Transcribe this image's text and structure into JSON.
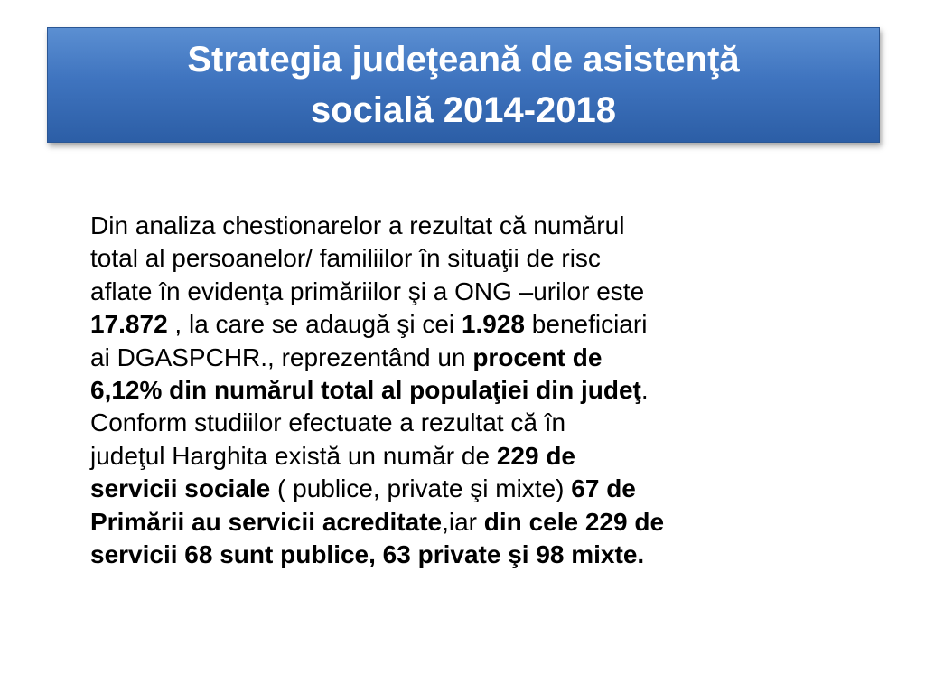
{
  "slide": {
    "title_line1": "Strategia judeţeană de asistenţă",
    "title_line2": "socială 2014-2018"
  },
  "body": {
    "l1": "Din analiza chestionarelor a rezultat  că numărul",
    "l2": "total al persoanelor/ familiilor în situaţii de risc",
    "l3": "aflate în evidenţa primăriilor şi a ONG –urilor este",
    "l4_bold1": "17.872",
    "l4_text1": " , la care se adaugă şi cei ",
    "l4_bold2": "1.928",
    "l4_text2": " beneficiari",
    "l5_text": "ai DGASPCHR., reprezentând un ",
    "l5_bold": "procent de",
    "l6_bold": "6,12% din numărul total al populaţiei din judeţ",
    "l6_text": ".",
    "l7": "Conform studiilor efectuate a rezultat că în",
    "l8_text": "judeţul Harghita există un număr de ",
    "l8_bold": "229 de",
    "l9_bold1": "servicii sociale",
    "l9_text": " ( publice, private şi mixte) ",
    "l9_bold2": "67 de",
    "l10_bold1": "Primării au servicii acreditate",
    "l10_text": ",iar ",
    "l10_bold2": "din cele 229 de",
    "l11_bold": "servicii 68 sunt publice, 63 private şi 98 mixte."
  }
}
